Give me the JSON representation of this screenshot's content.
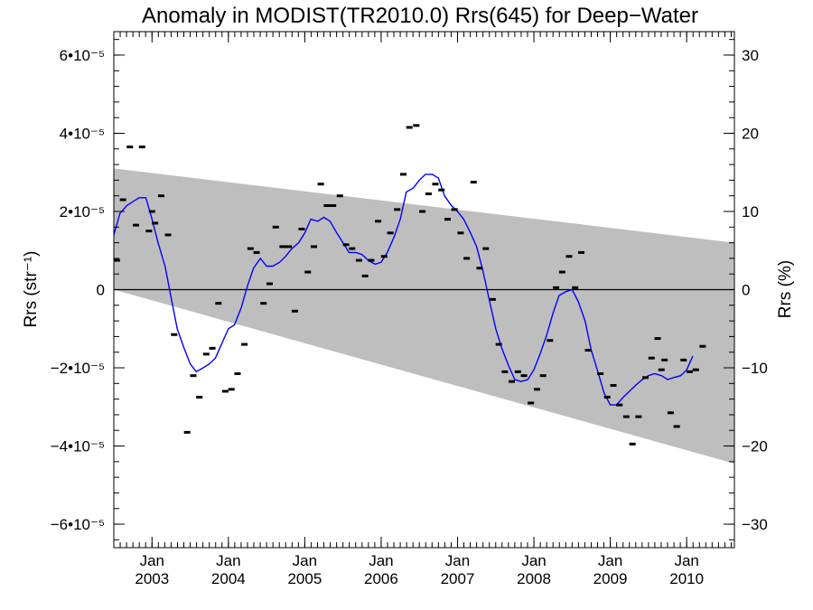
{
  "chart_data": {
    "type": "scatter",
    "title": "Anomaly in MODIST(TR2010.0) Rrs(645) for Deep−Water",
    "ylabel_left": "Rrs (str⁻¹)",
    "ylabel_right": "Rrs (%)",
    "xlabel": "",
    "xlim": [
      2002.5,
      2010.625
    ],
    "ylim": [
      -6.6e-05,
      6.6e-05
    ],
    "y2lim": [
      -33,
      33
    ],
    "x_ticks": [
      {
        "x": 2003,
        "month": "Jan",
        "year": "2003"
      },
      {
        "x": 2004,
        "month": "Jan",
        "year": "2004"
      },
      {
        "x": 2005,
        "month": "Jan",
        "year": "2005"
      },
      {
        "x": 2006,
        "month": "Jan",
        "year": "2006"
      },
      {
        "x": 2007,
        "month": "Jan",
        "year": "2007"
      },
      {
        "x": 2008,
        "month": "Jan",
        "year": "2008"
      },
      {
        "x": 2009,
        "month": "Jan",
        "year": "2009"
      },
      {
        "x": 2010,
        "month": "Jan",
        "year": "2010"
      }
    ],
    "y_ticks_left": [
      {
        "value": 6e-05,
        "label": "6•10⁻⁵"
      },
      {
        "value": 4e-05,
        "label": "4•10⁻⁵"
      },
      {
        "value": 2e-05,
        "label": "2•10⁻⁵"
      },
      {
        "value": 0,
        "label": "0"
      },
      {
        "value": -2e-05,
        "label": "−2•10⁻⁵"
      },
      {
        "value": -4e-05,
        "label": "−4•10⁻⁵"
      },
      {
        "value": -6e-05,
        "label": "−6•10⁻⁵"
      }
    ],
    "y_ticks_right": [
      {
        "value": 30,
        "label": "30"
      },
      {
        "value": 20,
        "label": "20"
      },
      {
        "value": 10,
        "label": "10"
      },
      {
        "value": 0,
        "label": "0"
      },
      {
        "value": -10,
        "label": "−10"
      },
      {
        "value": -20,
        "label": "−20"
      },
      {
        "value": -30,
        "label": "−30"
      }
    ],
    "band": {
      "color": "#bebebe",
      "upper": [
        [
          2002.5,
          3.1e-05
        ],
        [
          2010.625,
          1.2e-05
        ]
      ],
      "lower": [
        [
          2002.5,
          0.0
        ],
        [
          2010.625,
          -4.45e-05
        ]
      ]
    },
    "zero_line": 0,
    "series": [
      {
        "style": "points",
        "color": "#000000",
        "points": [
          [
            2002.54,
            7.5e-06
          ],
          [
            2002.62,
            2.3e-05
          ],
          [
            2002.71,
            3.65e-05
          ],
          [
            2002.79,
            1.65e-05
          ],
          [
            2002.87,
            3.65e-05
          ],
          [
            2002.96,
            1.5e-05
          ],
          [
            2003.0,
            2e-05
          ],
          [
            2003.04,
            1.7e-05
          ],
          [
            2003.12,
            2.4e-05
          ],
          [
            2003.21,
            1.4e-05
          ],
          [
            2003.29,
            -1.15e-05
          ],
          [
            2003.46,
            -3.65e-05
          ],
          [
            2003.54,
            -2.2e-05
          ],
          [
            2003.62,
            -2.75e-05
          ],
          [
            2003.71,
            -1.65e-05
          ],
          [
            2003.79,
            -1.5e-05
          ],
          [
            2003.87,
            -3.5e-06
          ],
          [
            2003.96,
            -2.6e-05
          ],
          [
            2004.04,
            -2.55e-05
          ],
          [
            2004.12,
            -2.15e-05
          ],
          [
            2004.21,
            -1.4e-05
          ],
          [
            2004.29,
            1.05e-05
          ],
          [
            2004.37,
            9.5e-06
          ],
          [
            2004.46,
            -3.5e-06
          ],
          [
            2004.54,
            1.5e-06
          ],
          [
            2004.62,
            1.6e-05
          ],
          [
            2004.71,
            1.1e-05
          ],
          [
            2004.79,
            1.1e-05
          ],
          [
            2004.87,
            -5.5e-06
          ],
          [
            2004.96,
            1.55e-05
          ],
          [
            2005.04,
            4.5e-06
          ],
          [
            2005.12,
            1.1e-05
          ],
          [
            2005.21,
            2.7e-05
          ],
          [
            2005.29,
            2.15e-05
          ],
          [
            2005.37,
            2.15e-05
          ],
          [
            2005.46,
            2.4e-05
          ],
          [
            2005.54,
            1.15e-05
          ],
          [
            2005.62,
            1.05e-05
          ],
          [
            2005.71,
            7.5e-06
          ],
          [
            2005.79,
            3.5e-06
          ],
          [
            2005.87,
            7.5e-06
          ],
          [
            2005.96,
            1.75e-05
          ],
          [
            2006.04,
            8.5e-06
          ],
          [
            2006.12,
            1.45e-05
          ],
          [
            2006.21,
            2.05e-05
          ],
          [
            2006.29,
            2.95e-05
          ],
          [
            2006.37,
            4.15e-05
          ],
          [
            2006.46,
            4.2e-05
          ],
          [
            2006.54,
            2e-05
          ],
          [
            2006.62,
            2.45e-05
          ],
          [
            2006.71,
            2.7e-05
          ],
          [
            2006.79,
            2.55e-05
          ],
          [
            2006.87,
            1.8e-05
          ],
          [
            2006.96,
            2.05e-05
          ],
          [
            2007.04,
            1.45e-05
          ],
          [
            2007.12,
            8e-06
          ],
          [
            2007.21,
            2.75e-05
          ],
          [
            2007.29,
            5.5e-06
          ],
          [
            2007.37,
            1.05e-05
          ],
          [
            2007.46,
            -2.5e-06
          ],
          [
            2007.54,
            -1.4e-05
          ],
          [
            2007.62,
            -2.1e-05
          ],
          [
            2007.71,
            -2.35e-05
          ],
          [
            2007.79,
            -2.1e-05
          ],
          [
            2007.87,
            -2.2e-05
          ],
          [
            2007.96,
            -2.9e-05
          ],
          [
            2008.04,
            -2.55e-05
          ],
          [
            2008.12,
            -2.2e-05
          ],
          [
            2008.21,
            -1.3e-05
          ],
          [
            2008.29,
            5e-07
          ],
          [
            2008.37,
            4.5e-06
          ],
          [
            2008.46,
            8.5e-06
          ],
          [
            2008.54,
            5e-07
          ],
          [
            2008.62,
            9.5e-06
          ],
          [
            2008.71,
            -1.55e-05
          ],
          [
            2008.87,
            -2.15e-05
          ],
          [
            2008.96,
            -2.75e-05
          ],
          [
            2009.04,
            -2.45e-05
          ],
          [
            2009.12,
            -2.95e-05
          ],
          [
            2009.21,
            -3.25e-05
          ],
          [
            2009.29,
            -3.95e-05
          ],
          [
            2009.37,
            -3.25e-05
          ],
          [
            2009.46,
            -2.25e-05
          ],
          [
            2009.54,
            -1.75e-05
          ],
          [
            2009.62,
            -1.25e-05
          ],
          [
            2009.67,
            -2.05e-05
          ],
          [
            2009.71,
            -1.8e-05
          ],
          [
            2009.79,
            -3.15e-05
          ],
          [
            2009.87,
            -3.5e-05
          ],
          [
            2009.96,
            -1.8e-05
          ],
          [
            2010.04,
            -2.1e-05
          ],
          [
            2010.12,
            -2.05e-05
          ],
          [
            2010.21,
            -1.45e-05
          ]
        ]
      },
      {
        "style": "line",
        "color": "#0000ff",
        "points": [
          [
            2002.5,
            1.4e-05
          ],
          [
            2002.58,
            1.95e-05
          ],
          [
            2002.67,
            2.15e-05
          ],
          [
            2002.75,
            2.25e-05
          ],
          [
            2002.83,
            2.35e-05
          ],
          [
            2002.92,
            2.35e-05
          ],
          [
            2003.0,
            1.8e-05
          ],
          [
            2003.08,
            1.2e-05
          ],
          [
            2003.17,
            6e-06
          ],
          [
            2003.25,
            -2e-06
          ],
          [
            2003.33,
            -1e-05
          ],
          [
            2003.42,
            -1.5e-05
          ],
          [
            2003.5,
            -1.9e-05
          ],
          [
            2003.58,
            -2.1e-05
          ],
          [
            2003.67,
            -2e-05
          ],
          [
            2003.75,
            -1.9e-05
          ],
          [
            2003.83,
            -1.75e-05
          ],
          [
            2003.92,
            -1.35e-05
          ],
          [
            2004.0,
            -1e-05
          ],
          [
            2004.08,
            -9e-06
          ],
          [
            2004.17,
            -4.5e-06
          ],
          [
            2004.25,
            1e-06
          ],
          [
            2004.33,
            5.5e-06
          ],
          [
            2004.42,
            8e-06
          ],
          [
            2004.5,
            6e-06
          ],
          [
            2004.58,
            6e-06
          ],
          [
            2004.67,
            7e-06
          ],
          [
            2004.75,
            8.5e-06
          ],
          [
            2004.83,
            1.05e-05
          ],
          [
            2004.92,
            1.2e-05
          ],
          [
            2005.0,
            1.45e-05
          ],
          [
            2005.08,
            1.8e-05
          ],
          [
            2005.17,
            1.75e-05
          ],
          [
            2005.25,
            1.85e-05
          ],
          [
            2005.33,
            1.75e-05
          ],
          [
            2005.42,
            1.45e-05
          ],
          [
            2005.5,
            1.2e-05
          ],
          [
            2005.58,
            9.5e-06
          ],
          [
            2005.67,
            9.5e-06
          ],
          [
            2005.75,
            9e-06
          ],
          [
            2005.83,
            7.5e-06
          ],
          [
            2005.92,
            6.5e-06
          ],
          [
            2006.0,
            7e-06
          ],
          [
            2006.08,
            9.5e-06
          ],
          [
            2006.17,
            1.35e-05
          ],
          [
            2006.25,
            1.8e-05
          ],
          [
            2006.33,
            2.5e-05
          ],
          [
            2006.42,
            2.6e-05
          ],
          [
            2006.5,
            2.8e-05
          ],
          [
            2006.58,
            2.95e-05
          ],
          [
            2006.67,
            2.95e-05
          ],
          [
            2006.75,
            2.85e-05
          ],
          [
            2006.83,
            2.4e-05
          ],
          [
            2006.92,
            2.15e-05
          ],
          [
            2007.0,
            2e-05
          ],
          [
            2007.08,
            1.8e-05
          ],
          [
            2007.17,
            1.45e-05
          ],
          [
            2007.25,
            1.1e-05
          ],
          [
            2007.33,
            5e-06
          ],
          [
            2007.42,
            -3e-06
          ],
          [
            2007.5,
            -1e-05
          ],
          [
            2007.58,
            -1.5e-05
          ],
          [
            2007.67,
            -1.95e-05
          ],
          [
            2007.75,
            -2.3e-05
          ],
          [
            2007.83,
            -2.35e-05
          ],
          [
            2007.92,
            -2.3e-05
          ],
          [
            2008.0,
            -2.05e-05
          ],
          [
            2008.08,
            -1.65e-05
          ],
          [
            2008.17,
            -1.15e-05
          ],
          [
            2008.25,
            -6e-06
          ],
          [
            2008.33,
            -1.5e-06
          ],
          [
            2008.42,
            -5e-07
          ],
          [
            2008.5,
            0.0
          ],
          [
            2008.58,
            -3e-06
          ],
          [
            2008.67,
            -8e-06
          ],
          [
            2008.75,
            -1.55e-05
          ],
          [
            2008.83,
            -2.05e-05
          ],
          [
            2008.92,
            -2.65e-05
          ],
          [
            2009.0,
            -2.95e-05
          ],
          [
            2009.08,
            -2.95e-05
          ],
          [
            2009.17,
            -2.75e-05
          ],
          [
            2009.25,
            -2.6e-05
          ],
          [
            2009.33,
            -2.45e-05
          ],
          [
            2009.42,
            -2.3e-05
          ],
          [
            2009.5,
            -2.2e-05
          ],
          [
            2009.58,
            -2.15e-05
          ],
          [
            2009.67,
            -2.2e-05
          ],
          [
            2009.75,
            -2.3e-05
          ],
          [
            2009.83,
            -2.25e-05
          ],
          [
            2009.92,
            -2.2e-05
          ],
          [
            2010.0,
            -2.05e-05
          ],
          [
            2010.08,
            -1.7e-05
          ]
        ]
      }
    ]
  }
}
